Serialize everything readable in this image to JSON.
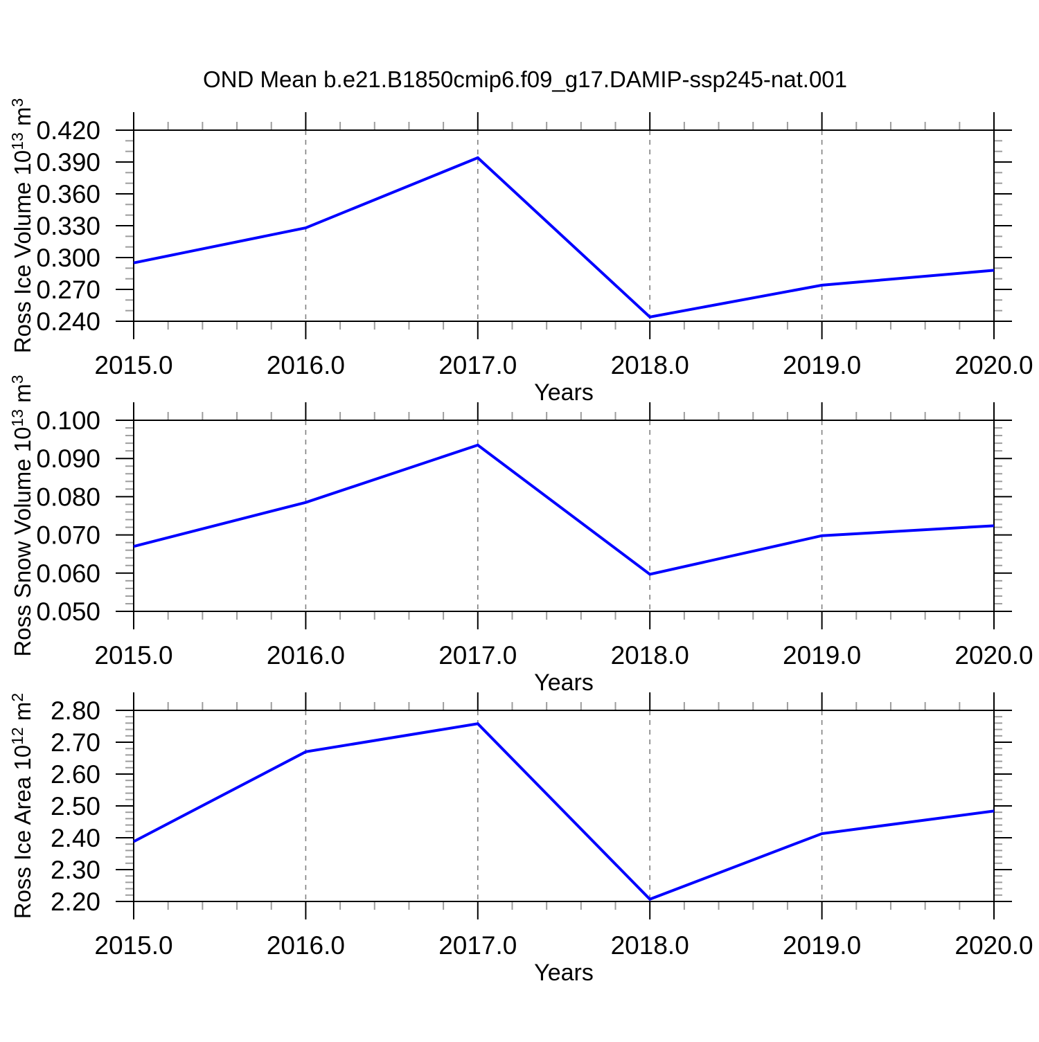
{
  "title": "OND Mean b.e21.B1850cmip6.f09_g17.DAMIP-ssp245-nat.001",
  "colors": {
    "line": "#0000ff",
    "axis": "#000000",
    "minor_tick": "#9c9c9c",
    "gridline": "#7f7f7f",
    "text": "#000000",
    "background": "#ffffff"
  },
  "x_axis": {
    "label": "Years",
    "range": [
      2015,
      2020
    ],
    "tick_values": [
      2015,
      2016,
      2017,
      2018,
      2019,
      2020
    ],
    "tick_labels": [
      "2015.0",
      "2016.0",
      "2017.0",
      "2018.0",
      "2019.0",
      "2020.0"
    ],
    "minor_step": 0.2,
    "gridline_years": [
      2016,
      2017,
      2018,
      2019
    ]
  },
  "chart_data": [
    {
      "type": "line",
      "id": "ross-ice-volume",
      "ylabel_text": "Ross Ice Volume 10^13 m^3",
      "ylabel_parts": [
        {
          "text": "Ross Ice Volume 10"
        },
        {
          "text": "13",
          "sup": true
        },
        {
          "text": " m"
        },
        {
          "text": "3",
          "sup": true
        }
      ],
      "xlabel": "Years",
      "x": [
        2015,
        2016,
        2017,
        2018,
        2019,
        2020
      ],
      "values": [
        0.295,
        0.328,
        0.394,
        0.244,
        0.274,
        0.288
      ],
      "ylim": [
        0.24,
        0.42
      ],
      "ytick_minor_step": 0.01,
      "yticks": [
        {
          "value": 0.24,
          "label": "0.240"
        },
        {
          "value": 0.27,
          "label": "0.270"
        },
        {
          "value": 0.3,
          "label": "0.300"
        },
        {
          "value": 0.33,
          "label": "0.330"
        },
        {
          "value": 0.36,
          "label": "0.360"
        },
        {
          "value": 0.39,
          "label": "0.390"
        },
        {
          "value": 0.42,
          "label": "0.420"
        }
      ]
    },
    {
      "type": "line",
      "id": "ross-snow-volume",
      "ylabel_text": "Ross Snow Volume 10^13 m^3",
      "ylabel_parts": [
        {
          "text": "Ross Snow Volume 10"
        },
        {
          "text": "13",
          "sup": true
        },
        {
          "text": " m"
        },
        {
          "text": "3",
          "sup": true
        }
      ],
      "xlabel": "Years",
      "x": [
        2015,
        2016,
        2017,
        2018,
        2019,
        2020
      ],
      "values": [
        0.067,
        0.0785,
        0.0935,
        0.0597,
        0.0698,
        0.0724
      ],
      "ylim": [
        0.05,
        0.1
      ],
      "ytick_minor_step": 0.002,
      "yticks": [
        {
          "value": 0.05,
          "label": "0.050"
        },
        {
          "value": 0.06,
          "label": "0.060"
        },
        {
          "value": 0.07,
          "label": "0.070"
        },
        {
          "value": 0.08,
          "label": "0.080"
        },
        {
          "value": 0.09,
          "label": "0.090"
        },
        {
          "value": 0.1,
          "label": "0.100"
        }
      ]
    },
    {
      "type": "line",
      "id": "ross-ice-area",
      "ylabel_text": "Ross Ice Area 10^12 m^2",
      "ylabel_parts": [
        {
          "text": "Ross Ice Area 10"
        },
        {
          "text": "12",
          "sup": true
        },
        {
          "text": " m"
        },
        {
          "text": "2",
          "sup": true
        }
      ],
      "xlabel": "Years",
      "x": [
        2015,
        2016,
        2017,
        2018,
        2019,
        2020
      ],
      "values": [
        2.388,
        2.67,
        2.758,
        2.207,
        2.413,
        2.484
      ],
      "ylim": [
        2.2,
        2.8
      ],
      "ytick_minor_step": 0.02,
      "yticks": [
        {
          "value": 2.2,
          "label": "2.20"
        },
        {
          "value": 2.3,
          "label": "2.30"
        },
        {
          "value": 2.4,
          "label": "2.40"
        },
        {
          "value": 2.5,
          "label": "2.50"
        },
        {
          "value": 2.6,
          "label": "2.60"
        },
        {
          "value": 2.7,
          "label": "2.70"
        },
        {
          "value": 2.8,
          "label": "2.80"
        }
      ]
    }
  ]
}
